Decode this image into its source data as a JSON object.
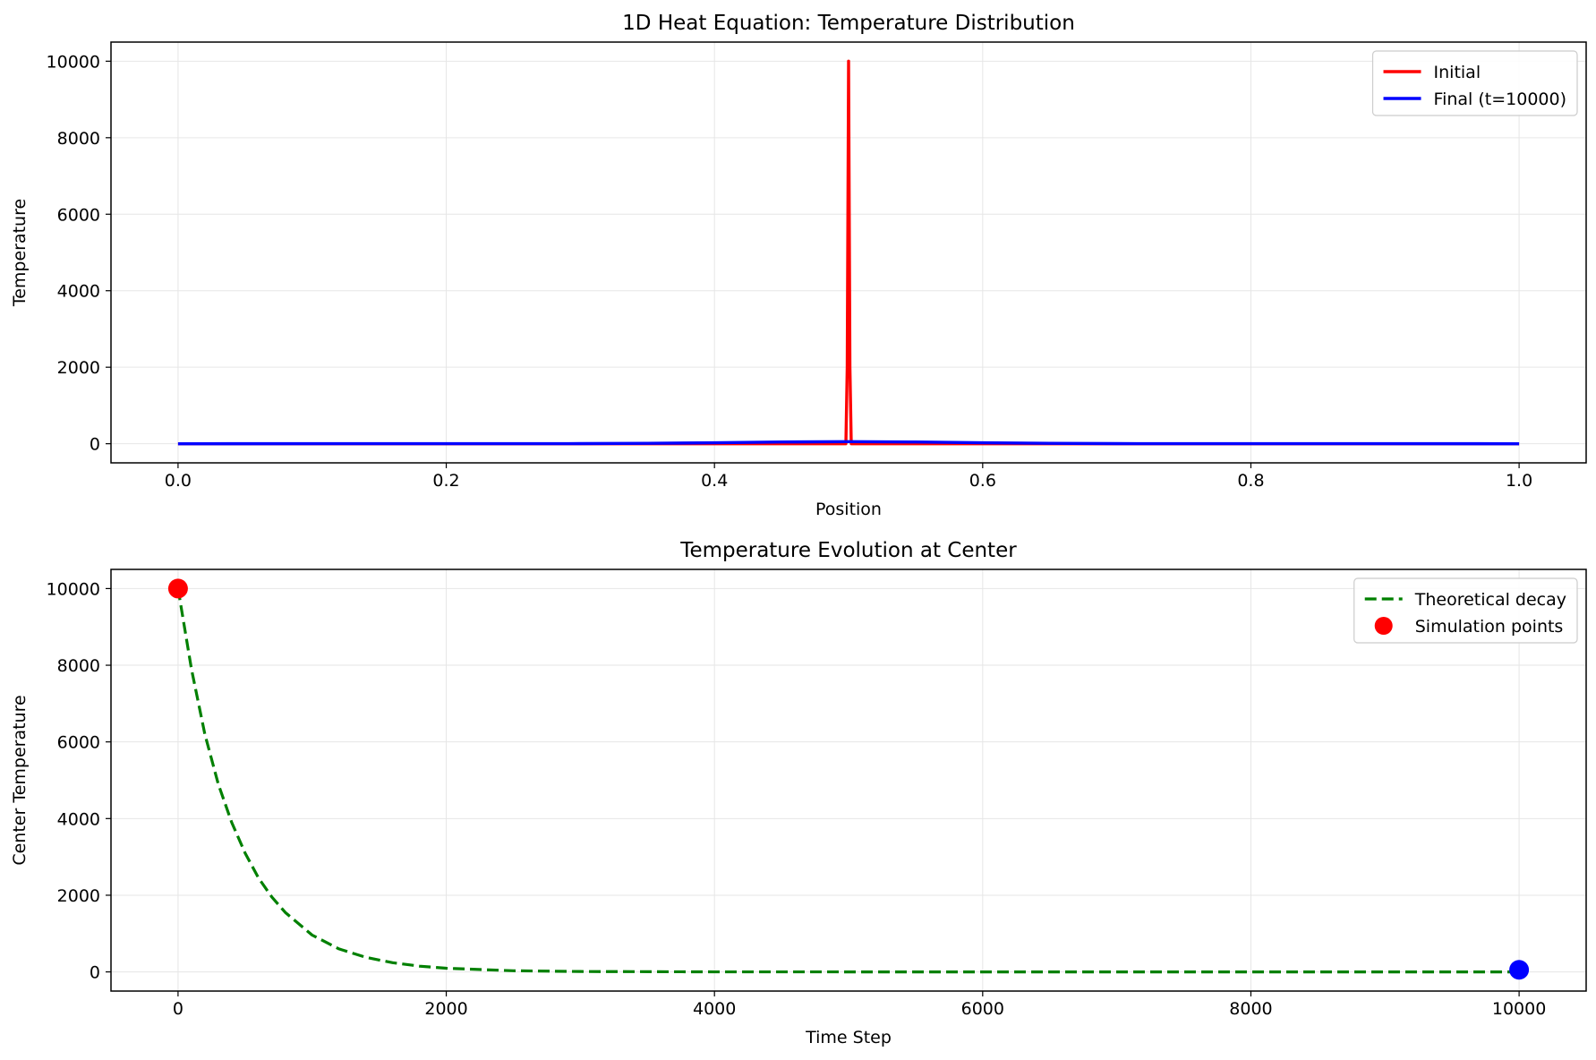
{
  "chart_data": [
    {
      "type": "line",
      "title": "1D Heat Equation: Temperature Distribution",
      "xlabel": "Position",
      "ylabel": "Temperature",
      "xlim": [
        -0.05,
        1.05
      ],
      "ylim": [
        -500,
        10500
      ],
      "xticks": [
        0.0,
        0.2,
        0.4,
        0.6,
        0.8,
        1.0
      ],
      "xtick_labels": [
        "0.0",
        "0.2",
        "0.4",
        "0.6",
        "0.8",
        "1.0"
      ],
      "yticks": [
        0,
        2000,
        4000,
        6000,
        8000,
        10000
      ],
      "ytick_labels": [
        "0",
        "2000",
        "4000",
        "6000",
        "8000",
        "10000"
      ],
      "grid": true,
      "legend_position": "upper-right",
      "series": [
        {
          "name": "Initial",
          "color": "#ff0000",
          "style": "solid",
          "x": [
            0.0,
            0.498,
            0.499,
            0.5,
            0.501,
            0.502,
            1.0
          ],
          "y": [
            0,
            0,
            2000,
            10000,
            2000,
            0,
            0
          ]
        },
        {
          "name": "Final (t=10000)",
          "color": "#0000ff",
          "style": "solid",
          "x": [
            0.0,
            0.3,
            0.35,
            0.4,
            0.45,
            0.5,
            0.55,
            0.6,
            0.65,
            0.7,
            1.0
          ],
          "y": [
            0,
            3,
            10,
            25,
            45,
            55,
            45,
            25,
            10,
            3,
            0
          ]
        }
      ]
    },
    {
      "type": "line",
      "title": "Temperature Evolution at Center",
      "xlabel": "Time Step",
      "ylabel": "Center Temperature",
      "xlim": [
        -500,
        10500
      ],
      "ylim": [
        -500,
        10500
      ],
      "xticks": [
        0,
        2000,
        4000,
        6000,
        8000,
        10000
      ],
      "xtick_labels": [
        "0",
        "2000",
        "4000",
        "6000",
        "8000",
        "10000"
      ],
      "yticks": [
        0,
        2000,
        4000,
        6000,
        8000,
        10000
      ],
      "ytick_labels": [
        "0",
        "2000",
        "4000",
        "6000",
        "8000",
        "10000"
      ],
      "grid": true,
      "legend_position": "upper-right",
      "series": [
        {
          "name": "Theoretical decay",
          "color": "#008000",
          "style": "dashed",
          "x": [
            0,
            100,
            200,
            300,
            400,
            500,
            600,
            700,
            800,
            1000,
            1200,
            1400,
            1600,
            1800,
            2000,
            2500,
            3000,
            4000,
            5000,
            6000,
            8000,
            10000
          ],
          "y": [
            10000,
            7900,
            6200,
            4900,
            3900,
            3100,
            2450,
            1950,
            1550,
            960,
            600,
            380,
            240,
            150,
            95,
            30,
            10,
            1,
            0,
            0,
            0,
            0
          ]
        },
        {
          "name": "Simulation points",
          "type": "scatter",
          "color": "#ff0000",
          "points": [
            {
              "x": 0,
              "y": 10000,
              "color": "#ff0000"
            },
            {
              "x": 10000,
              "y": 55,
              "color": "#0000ff"
            }
          ]
        }
      ]
    }
  ]
}
